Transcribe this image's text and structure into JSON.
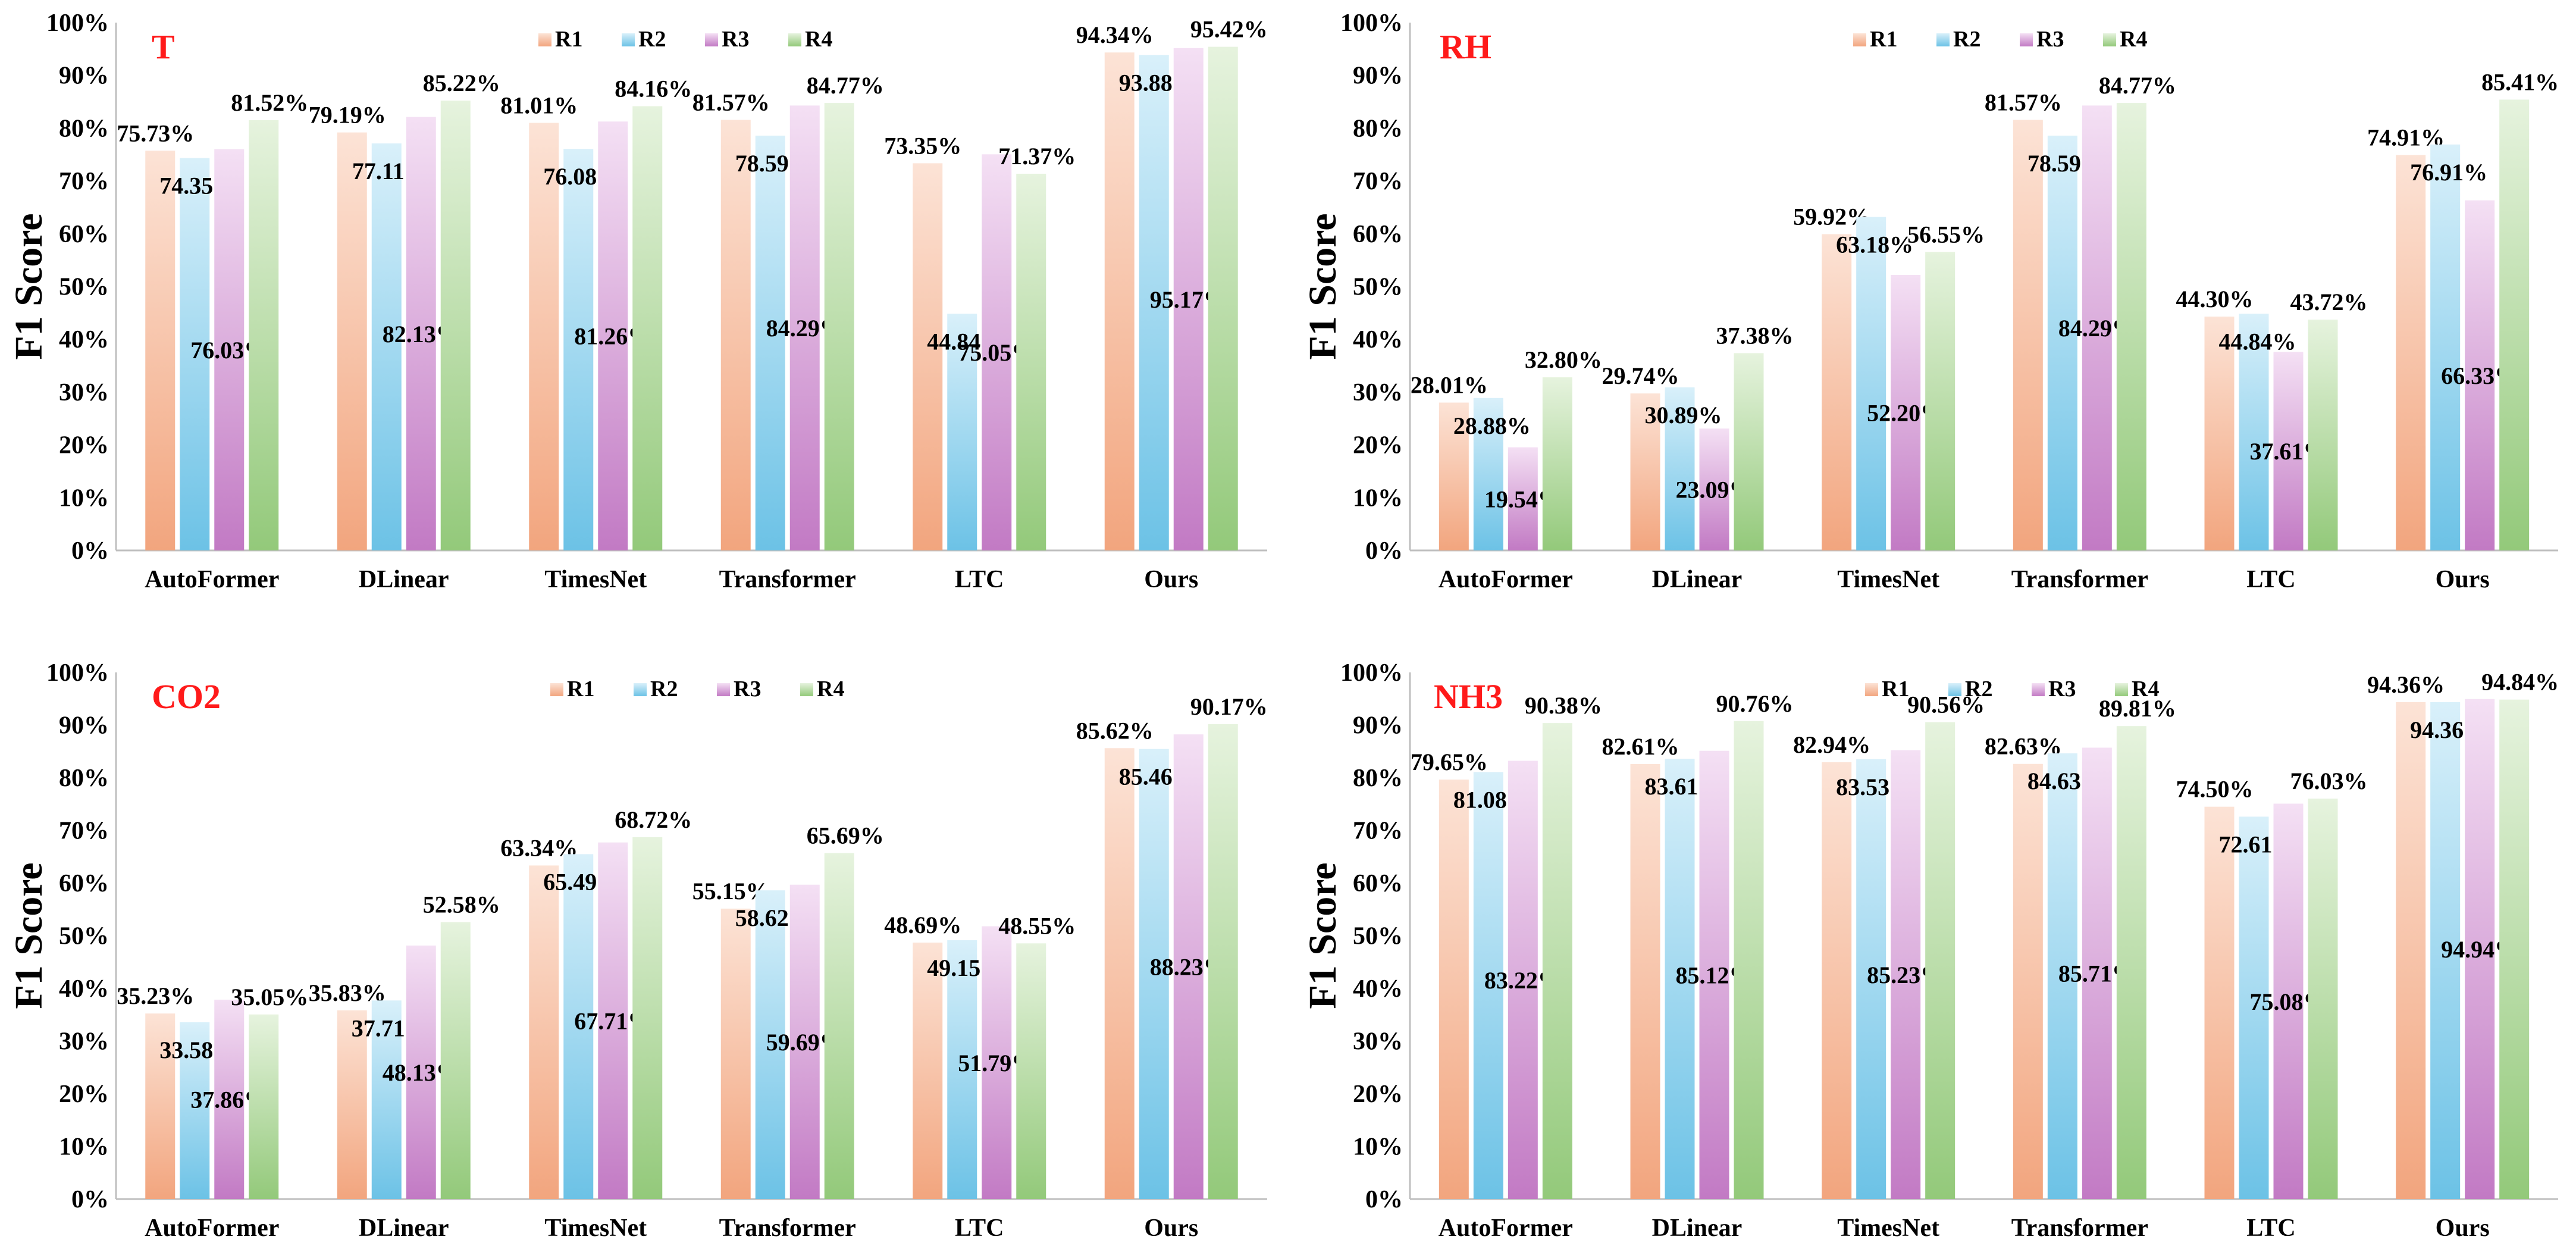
{
  "y_axis_label": "F1 Score",
  "title_color": "#ff1a1a",
  "series_colors": {
    "R1": [
      "#f2a57e",
      "#fce3d6"
    ],
    "R2": [
      "#6cc2e6",
      "#d9f0fa"
    ],
    "R3": [
      "#c27ac4",
      "#f4e0f4"
    ],
    "R4": [
      "#93c97a",
      "#e6f3de"
    ]
  },
  "chart_data": [
    {
      "type": "bar",
      "title": "T",
      "ylabel": "F1 Score",
      "xlabel": "",
      "ylim": [
        0,
        100
      ],
      "yticks": [
        "0%",
        "10%",
        "20%",
        "30%",
        "40%",
        "50%",
        "60%",
        "70%",
        "80%",
        "90%",
        "100%"
      ],
      "legend": [
        "R1",
        "R2",
        "R3",
        "R4"
      ],
      "legend_position": "top-center",
      "categories": [
        "AutoFormer",
        "DLinear",
        "TimesNet",
        "Transformer",
        "LTC",
        "Ours"
      ],
      "series": [
        {
          "name": "R1",
          "values": [
            75.73,
            79.19,
            81.01,
            81.57,
            73.35,
            94.34
          ],
          "labels": [
            "75.73%",
            "79.19%",
            "81.01%",
            "81.57%",
            "73.35%",
            "94.34%"
          ]
        },
        {
          "name": "R2",
          "values": [
            74.35,
            77.11,
            76.08,
            78.59,
            44.84,
            93.88
          ],
          "labels": [
            "74.35%",
            "77.11%",
            "76.08%",
            "78.59%",
            "44.84%",
            "93.88%"
          ]
        },
        {
          "name": "R3",
          "values": [
            76.03,
            82.13,
            81.26,
            84.29,
            75.05,
            95.17
          ],
          "labels": [
            "76.03%",
            "82.13%",
            "81.26%",
            "84.29%",
            "75.05%",
            "95.17%"
          ]
        },
        {
          "name": "R4",
          "values": [
            81.52,
            85.22,
            84.16,
            84.77,
            71.37,
            95.42
          ],
          "labels": [
            "81.52%",
            "85.22%",
            "84.16%",
            "84.77%",
            "71.37%",
            "95.42%"
          ]
        }
      ]
    },
    {
      "type": "bar",
      "title": "RH",
      "ylabel": "F1 Score",
      "xlabel": "",
      "ylim": [
        0,
        100
      ],
      "yticks": [
        "0%",
        "10%",
        "20%",
        "30%",
        "40%",
        "50%",
        "60%",
        "70%",
        "80%",
        "90%",
        "100%"
      ],
      "legend": [
        "R1",
        "R2",
        "R3",
        "R4"
      ],
      "legend_position": "top-center",
      "categories": [
        "AutoFormer",
        "DLinear",
        "TimesNet",
        "Transformer",
        "LTC",
        "Ours"
      ],
      "series": [
        {
          "name": "R1",
          "values": [
            28.01,
            29.74,
            59.92,
            81.57,
            44.3,
            74.91
          ],
          "labels": [
            "28.01%",
            "29.74%",
            "59.92%",
            "81.57%",
            "44.30%",
            "74.91%"
          ]
        },
        {
          "name": "R2",
          "values": [
            28.88,
            30.89,
            63.18,
            78.59,
            44.84,
            76.91
          ],
          "labels": [
            "28.88%",
            "30.89%",
            "63.18%",
            "78.59%",
            "44.84%",
            "76.91%"
          ]
        },
        {
          "name": "R3",
          "values": [
            19.54,
            23.09,
            52.2,
            84.29,
            37.61,
            66.33
          ],
          "labels": [
            "19.54%",
            "23.09%",
            "52.20%",
            "84.29%",
            "37.61%",
            "66.33%"
          ]
        },
        {
          "name": "R4",
          "values": [
            32.8,
            37.38,
            56.55,
            84.77,
            43.72,
            85.41
          ],
          "labels": [
            "32.80%",
            "37.38%",
            "56.55%",
            "84.77%",
            "43.72%",
            "85.41%"
          ]
        }
      ]
    },
    {
      "type": "bar",
      "title": "CO2",
      "ylabel": "F1 Score",
      "xlabel": "",
      "ylim": [
        0,
        100
      ],
      "yticks": [
        "0%",
        "10%",
        "20%",
        "30%",
        "40%",
        "50%",
        "60%",
        "70%",
        "80%",
        "90%",
        "100%"
      ],
      "legend": [
        "R1",
        "R2",
        "R3",
        "R4"
      ],
      "legend_position": "top-center",
      "categories": [
        "AutoFormer",
        "DLinear",
        "TimesNet",
        "Transformer",
        "LTC",
        "Ours"
      ],
      "series": [
        {
          "name": "R1",
          "values": [
            35.23,
            35.83,
            63.34,
            55.15,
            48.69,
            85.62
          ],
          "labels": [
            "35.23%",
            "35.83%",
            "63.34%",
            "55.15%",
            "48.69%",
            "85.62%"
          ]
        },
        {
          "name": "R2",
          "values": [
            33.58,
            37.71,
            65.49,
            58.62,
            49.15,
            85.46
          ],
          "labels": [
            "33.58%",
            "37.71%",
            "65.49%",
            "58.62%",
            "49.15%",
            "85.46%"
          ]
        },
        {
          "name": "R3",
          "values": [
            37.86,
            48.13,
            67.71,
            59.69,
            51.79,
            88.23
          ],
          "labels": [
            "37.86%",
            "48.13%",
            "67.71%",
            "59.69%",
            "51.79%",
            "88.23%"
          ]
        },
        {
          "name": "R4",
          "values": [
            35.05,
            52.58,
            68.72,
            65.69,
            48.55,
            90.17
          ],
          "labels": [
            "35.05%",
            "52.58%",
            "68.72%",
            "65.69%",
            "48.55%",
            "90.17%"
          ]
        }
      ]
    },
    {
      "type": "bar",
      "title": "NH3",
      "ylabel": "F1 Score",
      "xlabel": "",
      "ylim": [
        0,
        100
      ],
      "yticks": [
        "0%",
        "10%",
        "20%",
        "30%",
        "40%",
        "50%",
        "60%",
        "70%",
        "80%",
        "90%",
        "100%"
      ],
      "legend": [
        "R1",
        "R2",
        "R3",
        "R4"
      ],
      "legend_position": "top-center",
      "categories": [
        "AutoFormer",
        "DLinear",
        "TimesNet",
        "Transformer",
        "LTC",
        "Ours"
      ],
      "series": [
        {
          "name": "R1",
          "values": [
            79.65,
            82.61,
            82.94,
            82.63,
            74.5,
            94.36
          ],
          "labels": [
            "79.65%",
            "82.61%",
            "82.94%",
            "82.63%",
            "74.50%",
            "94.36%"
          ]
        },
        {
          "name": "R2",
          "values": [
            81.08,
            83.61,
            83.53,
            84.63,
            72.61,
            94.36
          ],
          "labels": [
            "81.08%",
            "83.61%",
            "83.53%",
            "84.63%",
            "72.61%",
            "94.36%"
          ]
        },
        {
          "name": "R3",
          "values": [
            83.22,
            85.12,
            85.23,
            85.71,
            75.08,
            94.94
          ],
          "labels": [
            "83.22%",
            "85.12%",
            "85.23%",
            "85.71%",
            "75.08%",
            "94.94%"
          ]
        },
        {
          "name": "R4",
          "values": [
            90.38,
            90.76,
            90.56,
            89.81,
            76.03,
            94.84
          ],
          "labels": [
            "90.38%",
            "90.76%",
            "90.56%",
            "89.81%",
            "76.03%",
            "94.84%"
          ]
        }
      ]
    }
  ]
}
